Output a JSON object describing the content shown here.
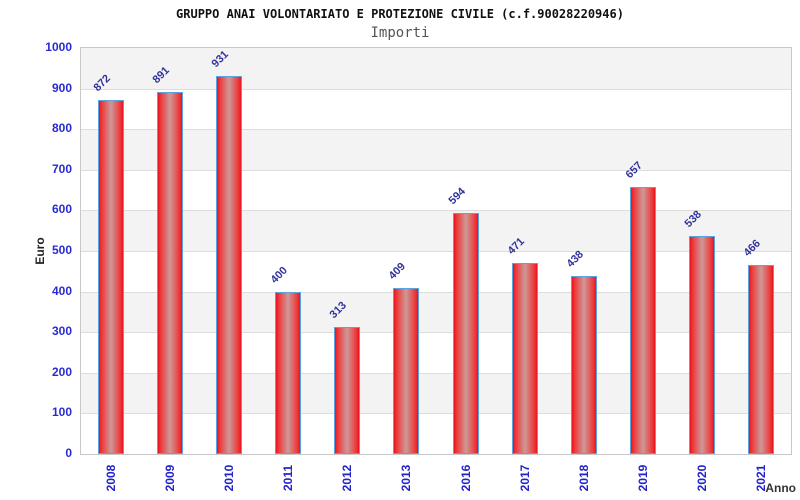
{
  "header": {
    "title": "GRUPPO ANAI VOLONTARIATO E PROTEZIONE CIVILE (c.f.90028220946)",
    "subtitle": "Importi"
  },
  "chart_data": {
    "type": "bar",
    "title": "GRUPPO ANAI VOLONTARIATO E PROTEZIONE CIVILE (c.f.90028220946)",
    "subtitle": "Importi",
    "categories": [
      "2008",
      "2009",
      "2010",
      "2011",
      "2012",
      "2013",
      "2016",
      "2017",
      "2018",
      "2019",
      "2020",
      "2021"
    ],
    "values": [
      872,
      891,
      931,
      400,
      313,
      409,
      594,
      471,
      438,
      657,
      538,
      466
    ],
    "xlabel": "Anno",
    "ylabel": "Euro",
    "ylim": [
      0,
      1000
    ],
    "ytick_step": 100,
    "grid": "horizontal",
    "legend": "none",
    "colors": {
      "bar_fill_edge": "#ea1220",
      "bar_fill_center": "#cf9494",
      "bar_border": "#5aa2e0",
      "band_gray": "#f3f3f3",
      "gridline": "#dddddd",
      "plot_border": "#c8c8c8",
      "axis_tick_label": "#2a2ad2",
      "bar_value_label": "#31339b",
      "title_color": "#111111",
      "subtitle_color": "#555555"
    }
  }
}
